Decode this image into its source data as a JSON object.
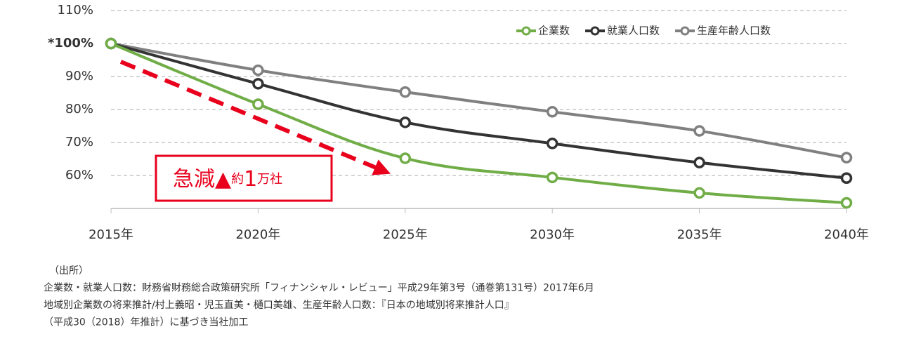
{
  "chart_data": {
    "type": "line",
    "categories": [
      "2015年",
      "2020年",
      "2025年",
      "2030年",
      "2035年",
      "2040年"
    ],
    "series": [
      {
        "name": "企業数",
        "color": "#70ad47",
        "values": [
          100,
          81.6,
          65.2,
          59.4,
          54.7,
          51.7
        ]
      },
      {
        "name": "就業人口数",
        "color": "#333333",
        "values": [
          100,
          87.8,
          76.1,
          69.7,
          63.9,
          59.2
        ]
      },
      {
        "name": "生産年齢人口数",
        "color": "#808080",
        "values": [
          100,
          91.9,
          85.3,
          79.3,
          73.5,
          65.4
        ]
      }
    ],
    "ylim": [
      50,
      110
    ],
    "yticks": [
      {
        "value": 60,
        "label": "60%"
      },
      {
        "value": 70,
        "label": "70%"
      },
      {
        "value": 80,
        "label": "80%"
      },
      {
        "value": 90,
        "label": "90%"
      },
      {
        "value": 100,
        "label": "*100%"
      },
      {
        "value": 110,
        "label": "110%"
      }
    ],
    "grid": true,
    "legend": "top-right",
    "annotation": [
      "急減▲",
      "約",
      "1",
      "万社"
    ],
    "notes": [
      "（出所）",
      "企業数・就業人口数：財務省財務総合政策研究所「フィナンシャル・レビュー」平成29年第3号（通巻第131号）2017年6月",
      "地域別企業数の将来推計/村上義昭・児玉直美・樋口美雄、生産年齢人口数：『日本の地域別将来推計人口』",
      "（平成30（2018）年推計）に基づき当社加工"
    ]
  }
}
